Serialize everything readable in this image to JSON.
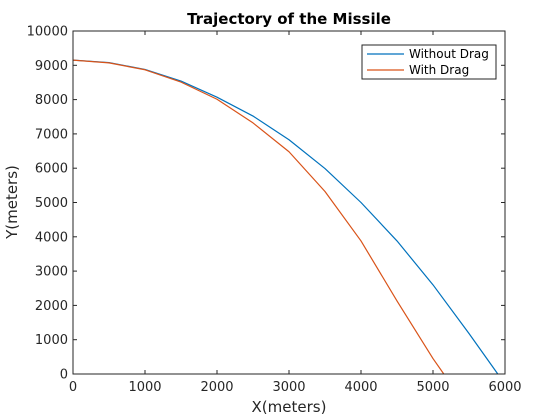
{
  "chart_data": {
    "type": "line",
    "title": "Trajectory of the Missile",
    "xlabel": "X(meters)",
    "ylabel": "Y(meters)",
    "xlim": [
      0,
      6000
    ],
    "ylim": [
      0,
      10000
    ],
    "x_ticks": [
      0,
      1000,
      2000,
      3000,
      4000,
      5000,
      6000
    ],
    "y_ticks": [
      0,
      1000,
      2000,
      3000,
      4000,
      5000,
      6000,
      7000,
      8000,
      9000,
      10000
    ],
    "grid": false,
    "legend_position": "top-right",
    "series": [
      {
        "name": "Without Drag",
        "color": "#0072BD",
        "x": [
          0,
          500,
          1000,
          1500,
          2000,
          2500,
          3000,
          3500,
          4000,
          4500,
          5000,
          5500,
          5900
        ],
        "y": [
          9150,
          9080,
          8880,
          8540,
          8070,
          7520,
          6830,
          5990,
          5000,
          3880,
          2600,
          1180,
          0
        ]
      },
      {
        "name": "With Drag",
        "color": "#D95319",
        "x": [
          0,
          500,
          1000,
          1500,
          2000,
          2500,
          3000,
          3500,
          4000,
          4500,
          5000,
          5150
        ],
        "y": [
          9150,
          9070,
          8870,
          8510,
          8010,
          7320,
          6480,
          5320,
          3880,
          2130,
          450,
          0
        ]
      }
    ]
  }
}
